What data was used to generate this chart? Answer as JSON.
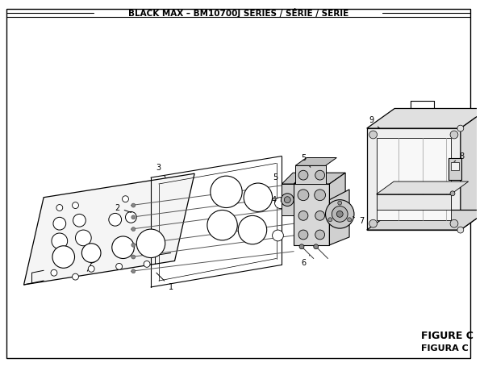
{
  "title": "BLACK MAX – BM10700J SERIES / SÉRIE / SERIE",
  "figure_label": "FIGURE C",
  "figura_label": "FIGURA C",
  "bg_color": "#ffffff",
  "line_color": "#000000",
  "gray_light": "#e8e8e8",
  "gray_mid": "#cccccc",
  "gray_dark": "#aaaaaa",
  "title_fontsize": 7.5,
  "label_fontsize": 7,
  "figure_label_fontsize": 9
}
